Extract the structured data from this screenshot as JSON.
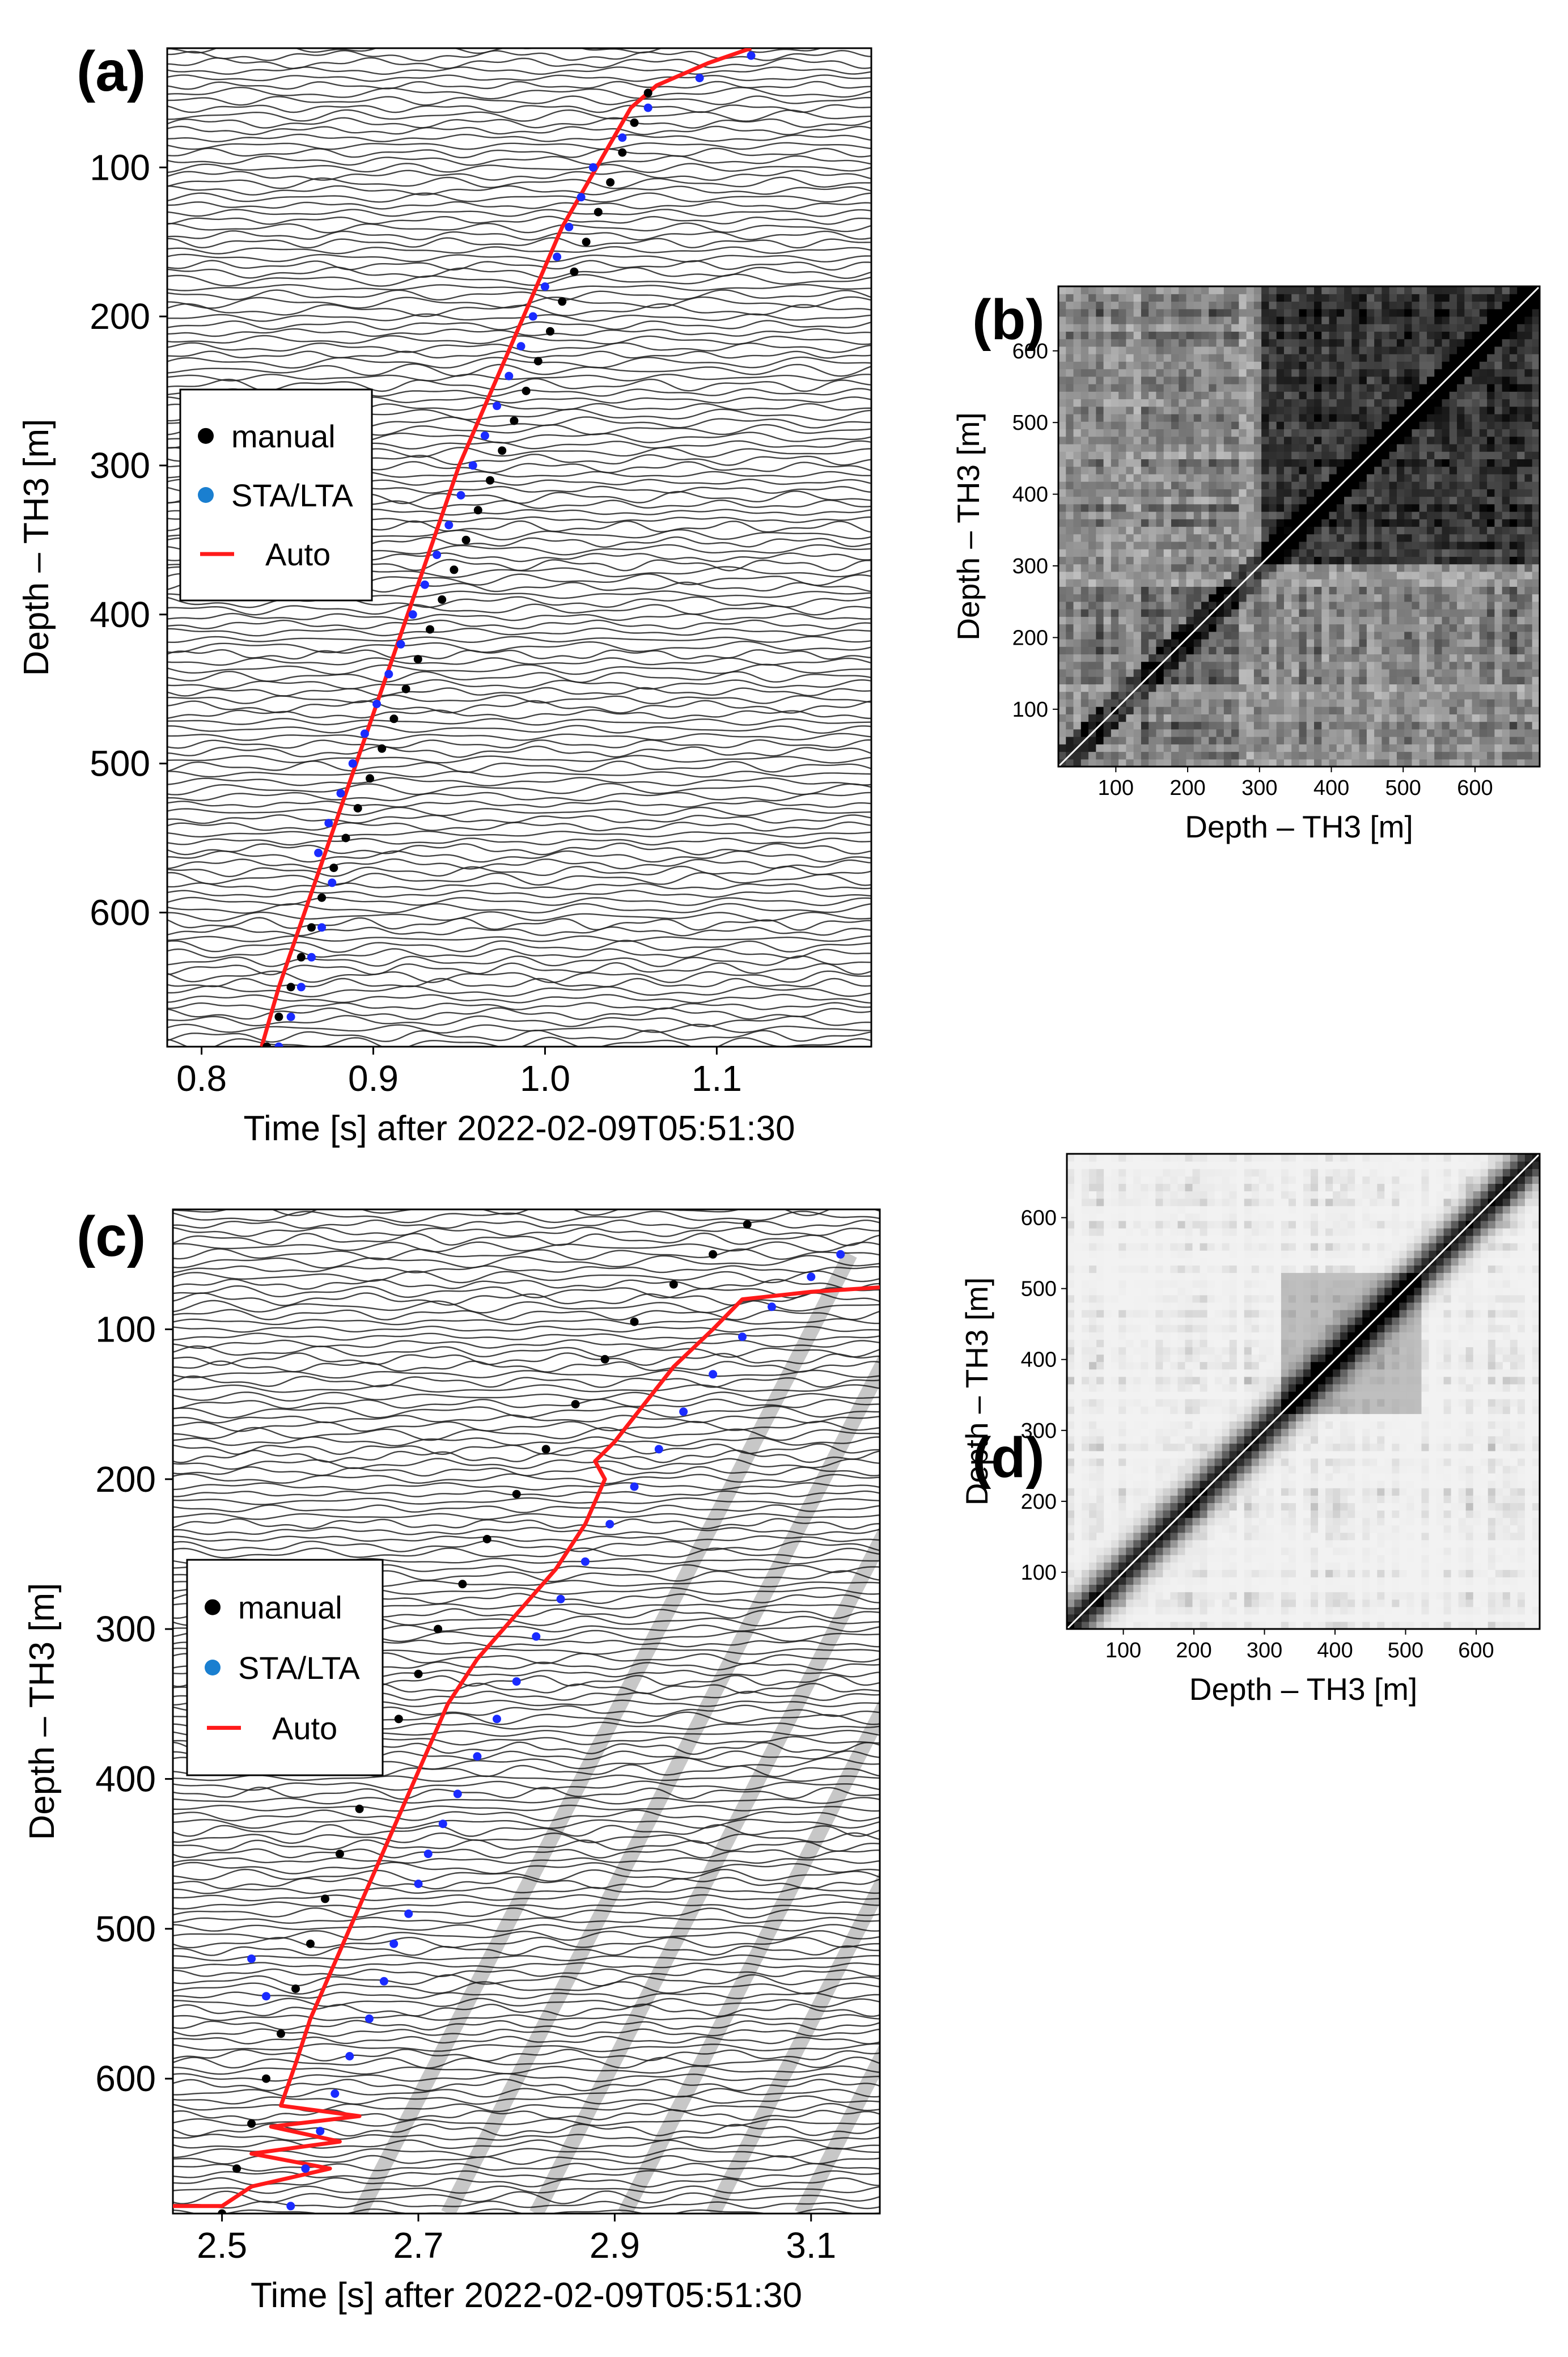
{
  "chart_data": [
    {
      "panel": "(a)",
      "type": "scatter",
      "subtype": "seismic wiggle section with picked arrival times",
      "xlabel": "Time [s] after 2022-02-09T05:51:30",
      "ylabel": "Depth – TH3 [m]",
      "xlim": [
        0.78,
        1.19
      ],
      "ylim": [
        690,
        20
      ],
      "xticks": [
        0.8,
        0.9,
        1.0,
        1.1
      ],
      "xtick_labels": [
        "0.8",
        "0.9",
        "1.0",
        "1.1"
      ],
      "yticks": [
        100,
        200,
        300,
        400,
        500,
        600
      ],
      "ytick_labels": [
        "100",
        "200",
        "300",
        "400",
        "500",
        "600"
      ],
      "legend": {
        "position": "middle-left",
        "entries": [
          "manual",
          "STA/LTA",
          "Auto"
        ]
      },
      "series": [
        {
          "name": "manual",
          "style": "black dots",
          "color": "#000000",
          "points": [
            [
              0.838,
              690
            ],
            [
              0.845,
              670
            ],
            [
              0.852,
              650
            ],
            [
              0.858,
              630
            ],
            [
              0.864,
              610
            ],
            [
              0.87,
              590
            ],
            [
              0.877,
              570
            ],
            [
              0.884,
              550
            ],
            [
              0.891,
              530
            ],
            [
              0.898,
              510
            ],
            [
              0.905,
              490
            ],
            [
              0.912,
              470
            ],
            [
              0.919,
              450
            ],
            [
              0.926,
              430
            ],
            [
              0.933,
              410
            ],
            [
              0.94,
              390
            ],
            [
              0.947,
              370
            ],
            [
              0.954,
              350
            ],
            [
              0.961,
              330
            ],
            [
              0.968,
              310
            ],
            [
              0.975,
              290
            ],
            [
              0.982,
              270
            ],
            [
              0.989,
              250
            ],
            [
              0.996,
              230
            ],
            [
              1.003,
              210
            ],
            [
              1.01,
              190
            ],
            [
              1.017,
              170
            ],
            [
              1.024,
              150
            ],
            [
              1.031,
              130
            ],
            [
              1.038,
              110
            ],
            [
              1.045,
              90
            ],
            [
              1.052,
              70
            ],
            [
              1.06,
              50
            ]
          ]
        },
        {
          "name": "STA/LTA",
          "style": "blue dots",
          "color": "#1a2bff",
          "points": [
            [
              0.845,
              690
            ],
            [
              0.852,
              670
            ],
            [
              0.858,
              650
            ],
            [
              0.864,
              630
            ],
            [
              0.87,
              610
            ],
            [
              0.876,
              580
            ],
            [
              0.868,
              560
            ],
            [
              0.874,
              540
            ],
            [
              0.881,
              520
            ],
            [
              0.888,
              500
            ],
            [
              0.895,
              480
            ],
            [
              0.902,
              460
            ],
            [
              0.909,
              440
            ],
            [
              0.916,
              420
            ],
            [
              0.923,
              400
            ],
            [
              0.93,
              380
            ],
            [
              0.937,
              360
            ],
            [
              0.944,
              340
            ],
            [
              0.951,
              320
            ],
            [
              0.958,
              300
            ],
            [
              0.965,
              280
            ],
            [
              0.972,
              260
            ],
            [
              0.979,
              240
            ],
            [
              0.986,
              220
            ],
            [
              0.993,
              200
            ],
            [
              1.0,
              180
            ],
            [
              1.007,
              160
            ],
            [
              1.014,
              140
            ],
            [
              1.021,
              120
            ],
            [
              1.028,
              100
            ],
            [
              1.045,
              80
            ],
            [
              1.06,
              60
            ],
            [
              1.09,
              40
            ],
            [
              1.12,
              25
            ]
          ]
        },
        {
          "name": "Auto",
          "style": "red line",
          "color": "#ff1a1a",
          "points": [
            [
              0.835,
              690
            ],
            [
              0.845,
              650
            ],
            [
              0.86,
              600
            ],
            [
              0.875,
              550
            ],
            [
              0.89,
              500
            ],
            [
              0.905,
              450
            ],
            [
              0.92,
              400
            ],
            [
              0.935,
              350
            ],
            [
              0.95,
              300
            ],
            [
              0.965,
              260
            ],
            [
              0.98,
              220
            ],
            [
              0.995,
              180
            ],
            [
              1.01,
              140
            ],
            [
              1.025,
              110
            ],
            [
              1.04,
              80
            ],
            [
              1.05,
              60
            ],
            [
              1.065,
              45
            ],
            [
              1.095,
              30
            ],
            [
              1.12,
              20
            ]
          ]
        }
      ]
    },
    {
      "panel": "(b)",
      "type": "heatmap",
      "subtype": "depth-depth similarity matrix (grayscale)",
      "xlabel": "Depth – TH3 [m]",
      "ylabel": "Depth – TH3 [m]",
      "xlim": [
        20,
        690
      ],
      "ylim": [
        20,
        690
      ],
      "xticks": [
        100,
        200,
        300,
        400,
        500,
        600
      ],
      "xtick_labels": [
        "100",
        "200",
        "300",
        "400",
        "500",
        "600"
      ],
      "yticks": [
        100,
        200,
        300,
        400,
        500,
        600
      ],
      "ytick_labels": [
        "100",
        "200",
        "300",
        "400",
        "500",
        "600"
      ]
    },
    {
      "panel": "(c)",
      "type": "scatter",
      "subtype": "seismic wiggle section with picked arrival times",
      "xlabel": "Time [s] after 2022-02-09T05:51:30",
      "ylabel": "Depth – TH3 [m]",
      "xlim": [
        2.45,
        3.17
      ],
      "ylim": [
        690,
        20
      ],
      "xticks": [
        2.5,
        2.7,
        2.9,
        3.1
      ],
      "xtick_labels": [
        "2.5",
        "2.7",
        "2.9",
        "3.1"
      ],
      "yticks": [
        100,
        200,
        300,
        400,
        500,
        600
      ],
      "ytick_labels": [
        "100",
        "200",
        "300",
        "400",
        "500",
        "600"
      ],
      "legend": {
        "position": "middle-left",
        "entries": [
          "manual",
          "STA/LTA",
          "Auto"
        ]
      },
      "series": [
        {
          "name": "manual",
          "style": "black dots",
          "color": "#000000",
          "points": [
            [
              2.5,
              690
            ],
            [
              2.515,
              660
            ],
            [
              2.53,
              630
            ],
            [
              2.545,
              600
            ],
            [
              2.56,
              570
            ],
            [
              2.575,
              540
            ],
            [
              2.59,
              510
            ],
            [
              2.605,
              480
            ],
            [
              2.62,
              450
            ],
            [
              2.64,
              420
            ],
            [
              2.66,
              390
            ],
            [
              2.68,
              360
            ],
            [
              2.7,
              330
            ],
            [
              2.72,
              300
            ],
            [
              2.745,
              270
            ],
            [
              2.77,
              240
            ],
            [
              2.8,
              210
            ],
            [
              2.83,
              180
            ],
            [
              2.86,
              150
            ],
            [
              2.89,
              120
            ],
            [
              2.92,
              95
            ],
            [
              2.96,
              70
            ],
            [
              3.0,
              50
            ],
            [
              3.035,
              30
            ]
          ]
        },
        {
          "name": "STA/LTA",
          "style": "blue dots",
          "color": "#1a2bff",
          "points": [
            [
              2.57,
              685
            ],
            [
              2.585,
              660
            ],
            [
              2.6,
              635
            ],
            [
              2.615,
              610
            ],
            [
              2.63,
              585
            ],
            [
              2.65,
              560
            ],
            [
              2.665,
              535
            ],
            [
              2.675,
              510
            ],
            [
              2.53,
              520
            ],
            [
              2.545,
              545
            ],
            [
              2.69,
              490
            ],
            [
              2.7,
              470
            ],
            [
              2.71,
              450
            ],
            [
              2.725,
              430
            ],
            [
              2.74,
              410
            ],
            [
              2.76,
              385
            ],
            [
              2.78,
              360
            ],
            [
              2.8,
              335
            ],
            [
              2.82,
              305
            ],
            [
              2.845,
              280
            ],
            [
              2.87,
              255
            ],
            [
              2.895,
              230
            ],
            [
              2.92,
              205
            ],
            [
              2.945,
              180
            ],
            [
              2.97,
              155
            ],
            [
              3.0,
              130
            ],
            [
              3.03,
              105
            ],
            [
              3.06,
              85
            ],
            [
              3.1,
              65
            ],
            [
              3.13,
              50
            ]
          ]
        },
        {
          "name": "Auto",
          "style": "red line",
          "color": "#ff1a1a",
          "points": [
            [
              2.45,
              685
            ],
            [
              2.5,
              685
            ],
            [
              2.53,
              672
            ],
            [
              2.61,
              660
            ],
            [
              2.53,
              650
            ],
            [
              2.62,
              642
            ],
            [
              2.55,
              632
            ],
            [
              2.64,
              625
            ],
            [
              2.56,
              618
            ],
            [
              2.575,
              590
            ],
            [
              2.59,
              560
            ],
            [
              2.61,
              530
            ],
            [
              2.63,
              500
            ],
            [
              2.65,
              470
            ],
            [
              2.67,
              440
            ],
            [
              2.69,
              410
            ],
            [
              2.71,
              380
            ],
            [
              2.73,
              350
            ],
            [
              2.76,
              320
            ],
            [
              2.8,
              290
            ],
            [
              2.84,
              260
            ],
            [
              2.87,
              230
            ],
            [
              2.89,
              200
            ],
            [
              2.88,
              188
            ],
            [
              2.9,
              175
            ],
            [
              2.93,
              150
            ],
            [
              2.96,
              125
            ],
            [
              3.0,
              100
            ],
            [
              3.03,
              80
            ],
            [
              3.1,
              75
            ],
            [
              3.17,
              72
            ]
          ]
        }
      ]
    },
    {
      "panel": "(d)",
      "type": "heatmap",
      "subtype": "depth-depth similarity matrix (grayscale)",
      "xlabel": "Depth – TH3 [m]",
      "ylabel": "Depth – TH3 [m]",
      "xlim": [
        20,
        690
      ],
      "ylim": [
        20,
        690
      ],
      "xticks": [
        100,
        200,
        300,
        400,
        500,
        600
      ],
      "xtick_labels": [
        "100",
        "200",
        "300",
        "400",
        "500",
        "600"
      ],
      "yticks": [
        100,
        200,
        300,
        400,
        500,
        600
      ],
      "ytick_labels": [
        "100",
        "200",
        "300",
        "400",
        "500",
        "600"
      ]
    }
  ]
}
